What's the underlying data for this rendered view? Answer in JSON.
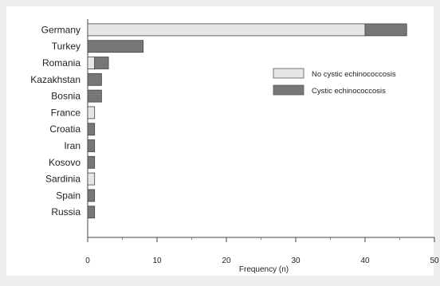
{
  "chart_data": {
    "type": "bar",
    "orientation": "horizontal",
    "stacked": true,
    "categories": [
      "Germany",
      "Turkey",
      "Romania",
      "Kazakhstan",
      "Bosnia",
      "France",
      "Croatia",
      "Iran",
      "Kosovo",
      "Sardinia",
      "Spain",
      "Russia"
    ],
    "series": [
      {
        "name": "No cystic echinococcosis",
        "color": "#e6e6e6",
        "values": [
          40,
          0,
          1,
          0,
          0,
          1,
          0,
          0,
          0,
          1,
          0,
          0
        ]
      },
      {
        "name": "Cystic echinococcosis",
        "color": "#777777",
        "values": [
          6,
          8,
          2,
          2,
          2,
          0,
          1,
          1,
          1,
          0,
          1,
          1
        ]
      }
    ],
    "xlabel": "Frequency (n)",
    "xlim": [
      0,
      50
    ],
    "xticks": [
      "0",
      "10",
      "20",
      "30",
      "40",
      "50"
    ],
    "grid": false,
    "legend_position": "top-right"
  }
}
